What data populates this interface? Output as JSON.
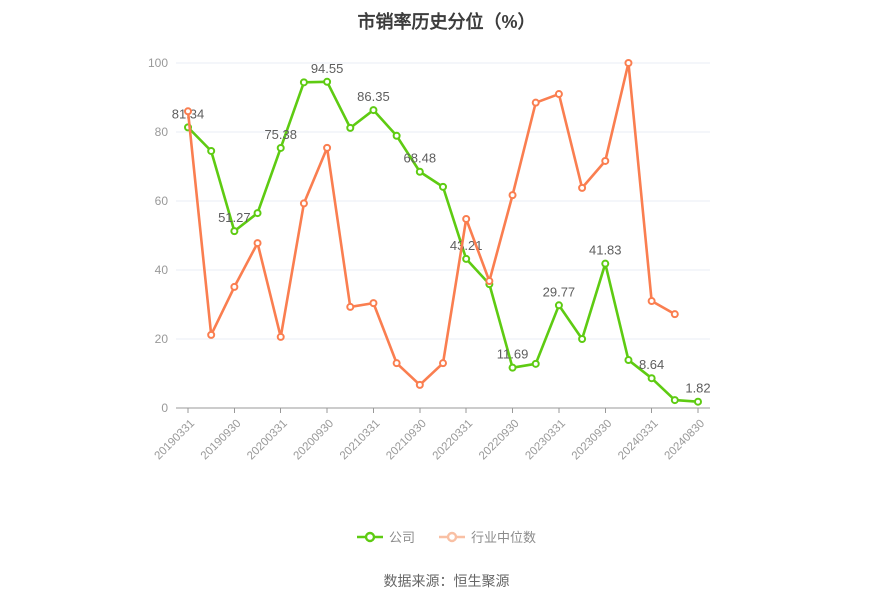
{
  "title": "市销率历史分位（%）",
  "footer": {
    "source": "数据来源：恒生聚源"
  },
  "chart_data": {
    "type": "line",
    "title": "市销率历史分位（%）",
    "xlabel": "",
    "ylabel": "",
    "ylim": [
      0,
      100
    ],
    "y_ticks": [
      0,
      20,
      40,
      60,
      80,
      100
    ],
    "grid": true,
    "legend_position": "bottom",
    "n_points": 23,
    "x_tick_labels": [
      "20190331",
      "20190930",
      "20200331",
      "20200930",
      "20210331",
      "20210930",
      "20220331",
      "20220930",
      "20230331",
      "20230930",
      "20240331",
      "20240830"
    ],
    "x_tick_indices": [
      0,
      2,
      4,
      6,
      8,
      10,
      12,
      14,
      16,
      18,
      20,
      22
    ],
    "series": [
      {
        "name": "公司",
        "color": "#5ecb12",
        "legend_icon_color": "#5ecb12",
        "values": [
          81.34,
          74.5,
          51.27,
          56.5,
          75.38,
          94.4,
          94.55,
          81.2,
          86.35,
          78.9,
          68.48,
          64.1,
          43.21,
          35.9,
          11.69,
          12.8,
          29.77,
          20,
          41.83,
          13.9,
          8.64,
          2.3,
          1.82
        ],
        "point_labels": {
          "0": "81.34",
          "2": "51.27",
          "4": "75.38",
          "6": "94.55",
          "8": "86.35",
          "10": "68.48",
          "12": "43.21",
          "14": "11.69",
          "16": "29.77",
          "18": "41.83",
          "20": "8.64",
          "22": "1.82"
        }
      },
      {
        "name": "行业中位数",
        "color": "#fa7e50",
        "legend_icon_color": "#f9c0a4",
        "values": [
          86,
          21.2,
          35.1,
          47.8,
          20.6,
          59.3,
          75.4,
          29.3,
          30.4,
          13,
          6.7,
          13,
          54.8,
          36.8,
          61.7,
          88.5,
          91,
          63.8,
          71.6,
          100,
          31,
          27.2,
          null
        ],
        "point_labels": {}
      }
    ]
  },
  "theme": {
    "background": "#ffffff",
    "grid_color": "#e9eef5",
    "axis_color": "#999999",
    "tick_label_color": "#999999",
    "point_label_color": "#5e5e5e",
    "title_color": "#3c3c3c",
    "legend_text_color": "#8c8c8c",
    "footer_color": "#666666"
  }
}
